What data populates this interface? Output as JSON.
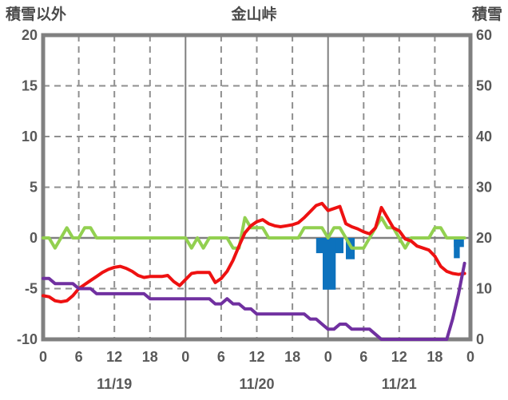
{
  "header": {
    "left_axis_title": "積雪以外",
    "title": "金山峠",
    "right_axis_title": "積雪"
  },
  "chart_data": {
    "type": "line",
    "title": "金山峠",
    "x_axis": {
      "hours_total": 72,
      "tick_interval_hours": 6,
      "tick_labels": [
        "0",
        "6",
        "12",
        "18",
        "0",
        "6",
        "12",
        "18",
        "0",
        "6",
        "12",
        "18",
        "0"
      ],
      "date_labels": [
        "11/19",
        "11/20",
        "11/21"
      ]
    },
    "left_axis": {
      "title": "積雪以外",
      "max": 20,
      "min": -10,
      "ticks": [
        20,
        15,
        10,
        5,
        0,
        -5,
        -10
      ]
    },
    "right_axis": {
      "title": "積雪",
      "max": 60,
      "min": 0,
      "ticks": [
        60,
        50,
        40,
        30,
        20,
        10,
        0
      ]
    },
    "series": [
      {
        "name": "green-line",
        "axis": "left",
        "color": "#92d050",
        "values": [
          0,
          0,
          -1,
          0,
          1,
          0,
          0,
          1,
          1,
          0,
          0,
          0,
          0,
          0,
          0,
          0,
          0,
          0,
          0,
          0,
          0,
          0,
          0,
          0,
          0,
          -1,
          0,
          -1,
          0,
          0,
          0,
          0,
          -1,
          -1,
          2,
          1,
          1,
          1,
          0,
          0,
          0,
          0,
          0,
          0,
          1,
          1,
          1,
          1,
          0,
          1,
          1,
          0,
          -1,
          -1,
          -1,
          0,
          1,
          2,
          1,
          1,
          0,
          -1,
          0,
          0,
          0,
          0,
          1,
          1,
          0,
          0,
          0,
          0
        ]
      },
      {
        "name": "red-line",
        "axis": "left",
        "color": "#ee1111",
        "values": [
          -5.7,
          -5.8,
          -6.2,
          -6.3,
          -6.2,
          -5.7,
          -5.0,
          -4.6,
          -4.2,
          -3.8,
          -3.4,
          -3.1,
          -2.9,
          -2.8,
          -3.0,
          -3.3,
          -3.7,
          -3.9,
          -3.8,
          -3.8,
          -3.8,
          -3.7,
          -4.3,
          -4.7,
          -4.1,
          -3.5,
          -3.4,
          -3.4,
          -3.4,
          -4.4,
          -4.0,
          -3.3,
          -2.2,
          -0.8,
          0.5,
          1.2,
          1.6,
          1.8,
          1.4,
          1.2,
          1.1,
          1.2,
          1.3,
          1.5,
          2.0,
          2.6,
          3.2,
          3.4,
          2.7,
          2.9,
          3.1,
          1.4,
          1.1,
          0.9,
          0.6,
          0.4,
          1.0,
          3.0,
          2.0,
          1.0,
          0.7,
          -0.1,
          -0.3,
          -0.8,
          -1.0,
          -1.2,
          -1.8,
          -2.8,
          -3.3,
          -3.5,
          -3.6,
          -3.5
        ]
      },
      {
        "name": "purple-line",
        "axis": "right",
        "color": "#7030a0",
        "values": [
          12,
          12,
          11,
          11,
          11,
          11,
          10,
          10,
          10,
          9,
          9,
          9,
          9,
          9,
          9,
          9,
          9,
          9,
          8,
          8,
          8,
          8,
          8,
          8,
          8,
          8,
          8,
          8,
          8,
          7,
          7,
          8,
          7,
          7,
          6,
          6,
          5,
          5,
          5,
          5,
          5,
          5,
          5,
          5,
          5,
          4,
          4,
          3,
          2,
          2,
          3,
          3,
          2,
          2,
          2,
          2,
          1,
          0,
          0,
          0,
          0,
          0,
          0,
          0,
          0,
          0,
          0,
          0,
          0,
          4,
          9,
          15
        ]
      }
    ],
    "bars": {
      "name": "blue-bars",
      "axis": "left",
      "color": "#0d72bd",
      "items": [
        {
          "start_hour": 46.0,
          "end_hour": 50.6,
          "depth": 1.5
        },
        {
          "start_hour": 47.1,
          "end_hour": 49.3,
          "depth": 5.1
        },
        {
          "start_hour": 51.0,
          "end_hour": 52.5,
          "depth": 2.1
        },
        {
          "start_hour": 69.2,
          "end_hour": 70.9,
          "depth": 0.9
        },
        {
          "start_hour": 69.2,
          "end_hour": 70.2,
          "depth": 2.0
        }
      ]
    },
    "grid": {
      "dashed_vertical_hours": [
        6,
        12,
        18,
        30,
        36,
        42,
        54,
        60,
        66
      ],
      "solid_vertical_hours": [
        24,
        48
      ],
      "dashed_horizontal_left_values": [
        15,
        10,
        5,
        -5
      ],
      "zero_line_left_value": 0
    },
    "colors": {
      "frame": "#808080",
      "grid": "#8f8f8f",
      "tick_text": "#595959",
      "header_text": "#4a4a4a"
    }
  }
}
